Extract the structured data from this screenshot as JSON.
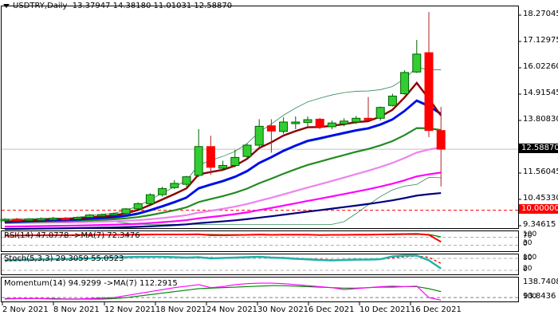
{
  "header": {
    "symbol": "USDTRY,Daily",
    "ohlc": "13.37947 14.38180 11.01031 12.58870"
  },
  "price_axis": {
    "ticks": [
      "18.27045",
      "17.12975",
      "16.02260",
      "14.91545",
      "13.80830",
      "11.56045",
      "10.45330",
      "9.34615"
    ],
    "current_price": "12.58870",
    "level_line": "10.00000"
  },
  "indicators": {
    "rsi": {
      "label": "RSI(14) 47.0778  ->MA(7) 72.3476",
      "ticks": [
        "100",
        "70",
        "30",
        "0"
      ]
    },
    "stoch": {
      "label": "Stoch(5,3,3) 29.3059 55.0523",
      "ticks": [
        "100",
        "80",
        "20",
        "0"
      ]
    },
    "momentum": {
      "label": "Momentum(14) 94.9299  ->MA(7) 112.2915",
      "ticks": [
        "138.7408",
        "93.8436",
        "100"
      ]
    }
  },
  "date_axis": {
    "labels": [
      "2 Nov 2021",
      "8 Nov 2021",
      "12 Nov 2021",
      "18 Nov 2021",
      "24 Nov 2021",
      "30 Nov 2021",
      "6 Dec 2021",
      "10 Dec 2021",
      "16 Dec 2021"
    ]
  },
  "colors": {
    "bull": "#32cd32",
    "bear": "#ff0000",
    "ema_fast": "#8b0000",
    "ema_mid": "#0000ff",
    "ema_slow": "#228b22",
    "ma_violet": "#ee82ee",
    "ma_magenta": "#ff00ff",
    "ma_navy": "#000080",
    "bollinger": "#2e8b57",
    "level": "#ff0000"
  },
  "chart_data": {
    "type": "candlestick",
    "title": "USDTRY, Daily",
    "xlabel": "",
    "ylabel": "",
    "ylim": [
      9.34615,
      18.27045
    ],
    "grid": false,
    "horizontal_lines": [
      {
        "value": 10.0,
        "style": "dashed",
        "color": "#ff0000"
      },
      {
        "value": 12.5887,
        "style": "solid",
        "color": "#c0c0c0"
      }
    ],
    "candles": [
      {
        "date": "1 Nov 2021",
        "o": 9.58,
        "h": 9.66,
        "l": 9.5,
        "c": 9.62
      },
      {
        "date": "2 Nov 2021",
        "o": 9.62,
        "h": 9.68,
        "l": 9.55,
        "c": 9.6
      },
      {
        "date": "3 Nov 2021",
        "o": 9.6,
        "h": 9.66,
        "l": 9.55,
        "c": 9.63
      },
      {
        "date": "4 Nov 2021",
        "o": 9.63,
        "h": 9.7,
        "l": 9.58,
        "c": 9.64
      },
      {
        "date": "5 Nov 2021",
        "o": 9.64,
        "h": 9.72,
        "l": 9.6,
        "c": 9.66
      },
      {
        "date": "8 Nov 2021",
        "o": 9.66,
        "h": 9.72,
        "l": 9.62,
        "c": 9.65
      },
      {
        "date": "9 Nov 2021",
        "o": 9.65,
        "h": 9.74,
        "l": 9.62,
        "c": 9.7
      },
      {
        "date": "10 Nov 2021",
        "o": 9.7,
        "h": 9.84,
        "l": 9.66,
        "c": 9.8
      },
      {
        "date": "11 Nov 2021",
        "o": 9.78,
        "h": 9.86,
        "l": 9.72,
        "c": 9.82
      },
      {
        "date": "12 Nov 2021",
        "o": 9.8,
        "h": 9.9,
        "l": 9.76,
        "c": 9.86
      },
      {
        "date": "15 Nov 2021",
        "o": 9.86,
        "h": 10.1,
        "l": 9.82,
        "c": 10.06
      },
      {
        "date": "16 Nov 2021",
        "o": 10.06,
        "h": 10.34,
        "l": 10.02,
        "c": 10.28
      },
      {
        "date": "17 Nov 2021",
        "o": 10.28,
        "h": 10.72,
        "l": 10.22,
        "c": 10.66
      },
      {
        "date": "18 Nov 2021",
        "o": 10.66,
        "h": 11.0,
        "l": 10.58,
        "c": 10.92
      },
      {
        "date": "19 Nov 2021",
        "o": 10.96,
        "h": 11.28,
        "l": 10.9,
        "c": 11.14
      },
      {
        "date": "22 Nov 2021",
        "o": 11.1,
        "h": 11.46,
        "l": 11.0,
        "c": 11.42
      },
      {
        "date": "23 Nov 2021",
        "o": 11.48,
        "h": 13.44,
        "l": 11.4,
        "c": 12.7
      },
      {
        "date": "24 Nov 2021",
        "o": 12.7,
        "h": 13.16,
        "l": 11.5,
        "c": 11.82
      },
      {
        "date": "25 Nov 2021",
        "o": 11.78,
        "h": 12.1,
        "l": 11.7,
        "c": 11.9
      },
      {
        "date": "26 Nov 2021",
        "o": 11.9,
        "h": 12.56,
        "l": 11.82,
        "c": 12.24
      },
      {
        "date": "29 Nov 2021",
        "o": 12.28,
        "h": 12.82,
        "l": 12.18,
        "c": 12.76
      },
      {
        "date": "30 Nov 2021",
        "o": 12.76,
        "h": 13.86,
        "l": 12.62,
        "c": 13.56
      },
      {
        "date": "1 Dec 2021",
        "o": 13.58,
        "h": 13.86,
        "l": 12.44,
        "c": 13.36
      },
      {
        "date": "2 Dec 2021",
        "o": 13.34,
        "h": 13.94,
        "l": 13.24,
        "c": 13.74
      },
      {
        "date": "3 Dec 2021",
        "o": 13.68,
        "h": 13.98,
        "l": 13.44,
        "c": 13.74
      },
      {
        "date": "6 Dec 2021",
        "o": 13.72,
        "h": 13.98,
        "l": 13.56,
        "c": 13.84
      },
      {
        "date": "7 Dec 2021",
        "o": 13.86,
        "h": 13.92,
        "l": 13.44,
        "c": 13.54
      },
      {
        "date": "8 Dec 2021",
        "o": 13.54,
        "h": 13.8,
        "l": 13.44,
        "c": 13.7
      },
      {
        "date": "9 Dec 2021",
        "o": 13.66,
        "h": 13.9,
        "l": 13.56,
        "c": 13.78
      },
      {
        "date": "10 Dec 2021",
        "o": 13.74,
        "h": 14.0,
        "l": 13.66,
        "c": 13.9
      },
      {
        "date": "13 Dec 2021",
        "o": 13.9,
        "h": 14.8,
        "l": 13.78,
        "c": 13.86
      },
      {
        "date": "14 Dec 2021",
        "o": 13.9,
        "h": 14.4,
        "l": 13.8,
        "c": 14.36
      },
      {
        "date": "15 Dec 2021",
        "o": 14.44,
        "h": 14.94,
        "l": 14.4,
        "c": 14.84
      },
      {
        "date": "16 Dec 2021",
        "o": 14.94,
        "h": 15.94,
        "l": 14.9,
        "c": 15.84
      },
      {
        "date": "17 Dec 2021",
        "o": 15.86,
        "h": 17.22,
        "l": 15.82,
        "c": 16.62
      },
      {
        "date": "20 Dec 2021",
        "o": 16.68,
        "h": 18.4,
        "l": 13.1,
        "c": 13.38
      },
      {
        "date": "21 Dec 2021",
        "o": 13.37947,
        "h": 14.3818,
        "l": 11.01031,
        "c": 12.5887
      }
    ],
    "series": [
      {
        "name": "EMA fast (dark red)",
        "values_end": 14.55
      },
      {
        "name": "EMA mid (blue)",
        "values_end": 14.22
      },
      {
        "name": "EMA slow (green)",
        "values_end": 13.55
      },
      {
        "name": "MA violet",
        "values_end": 12.6
      },
      {
        "name": "MA magenta",
        "values_end": 11.36
      },
      {
        "name": "MA navy",
        "values_end": 10.0
      },
      {
        "name": "Bollinger upper",
        "values_end": 16.0
      },
      {
        "name": "Bollinger lower",
        "values_end": 11.6
      }
    ],
    "subplots": [
      {
        "name": "RSI(14)",
        "value": 47.0778,
        "ma7": 72.3476,
        "levels": [
          30,
          70
        ],
        "range": [
          0,
          100
        ]
      },
      {
        "name": "Stoch(5,3,3)",
        "k": 29.3059,
        "d": 55.0523,
        "levels": [
          20,
          80
        ],
        "range": [
          0,
          100
        ]
      },
      {
        "name": "Momentum(14)",
        "value": 94.9299,
        "ma7": 112.2915,
        "level": 100,
        "range": [
          93.8436,
          138.7408
        ]
      }
    ]
  }
}
